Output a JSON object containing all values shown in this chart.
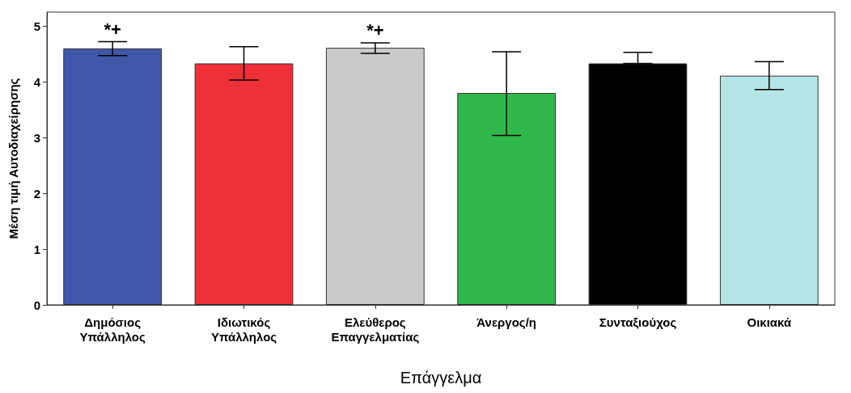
{
  "chart_data": {
    "type": "bar",
    "xlabel": "Επάγγελμα",
    "ylabel": "Μέση τιμή Αυτοδιαχείρησης",
    "categories": [
      "Δημόσιος\nΥπάλληλος",
      "Ιδιωτικός\nΥπάλληλος",
      "Ελεύθερος\nΕπαγγελματίας",
      "Άνεργος/η",
      "Συνταξιούχος",
      "Οικιακά"
    ],
    "values": [
      4.6,
      4.33,
      4.61,
      3.8,
      4.33,
      4.11
    ],
    "colors": [
      "#3f57a9",
      "#ef3038",
      "#cbcbcb",
      "#30b84a",
      "#000000",
      "#b4e6e6"
    ],
    "errors": [
      [
        4.47,
        4.72
      ],
      [
        4.03,
        4.63
      ],
      [
        4.51,
        4.7
      ],
      [
        3.04,
        4.54
      ],
      [
        4.33,
        4.53
      ],
      [
        3.86,
        4.36
      ]
    ],
    "ylim": [
      0,
      5.25
    ],
    "yticks": [
      0,
      1,
      2,
      3,
      4,
      5
    ],
    "grid": false,
    "annotations": [
      {
        "text": "*+",
        "x": "Δημόσιος\nΥπάλληλος",
        "y": 4.72
      },
      {
        "text": "*+",
        "x": "Ελεύθερος\nΕπαγγελματίας",
        "y": 4.7
      }
    ]
  }
}
